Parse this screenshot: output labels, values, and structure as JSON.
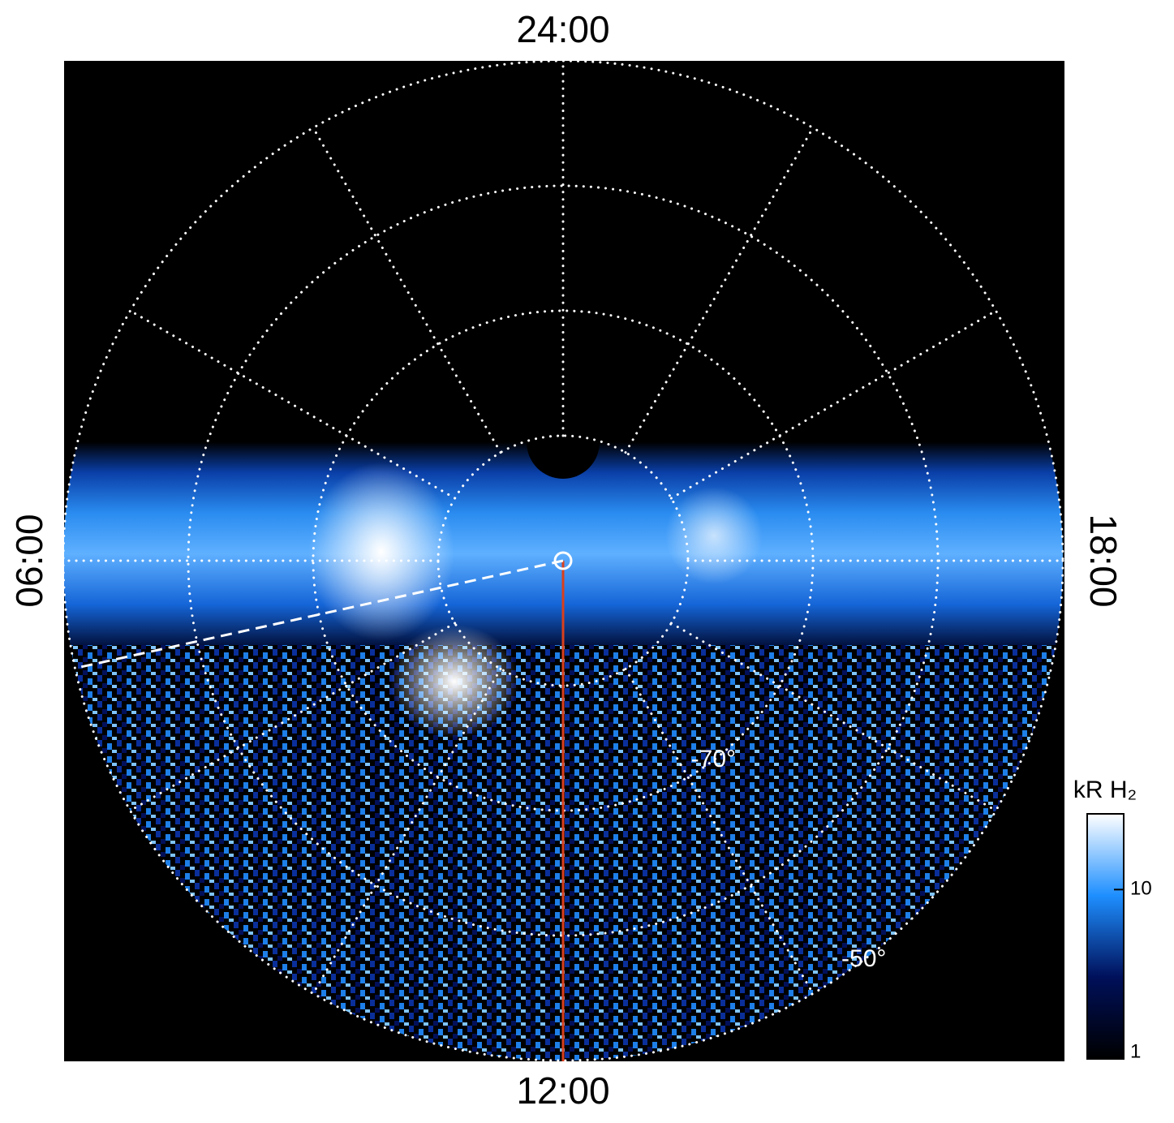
{
  "chart_data": {
    "type": "polar-image",
    "local_time_labels": [
      "24:00",
      "06:00",
      "12:00",
      "18:00"
    ],
    "rlim": [
      -90,
      -50
    ],
    "rings": [
      -80,
      -70,
      -60,
      -50
    ],
    "ring_labels": [
      {
        "value": -70,
        "label": "-70°"
      },
      {
        "value": -50,
        "label": "-50°"
      }
    ],
    "colorbar": {
      "title": "kR H₂",
      "scale": "log",
      "lim": [
        1,
        28
      ],
      "ticks": [
        1,
        10
      ],
      "colormap": [
        "#000000",
        "#00105a",
        "#1e8fff",
        "#ffffff"
      ]
    }
  }
}
